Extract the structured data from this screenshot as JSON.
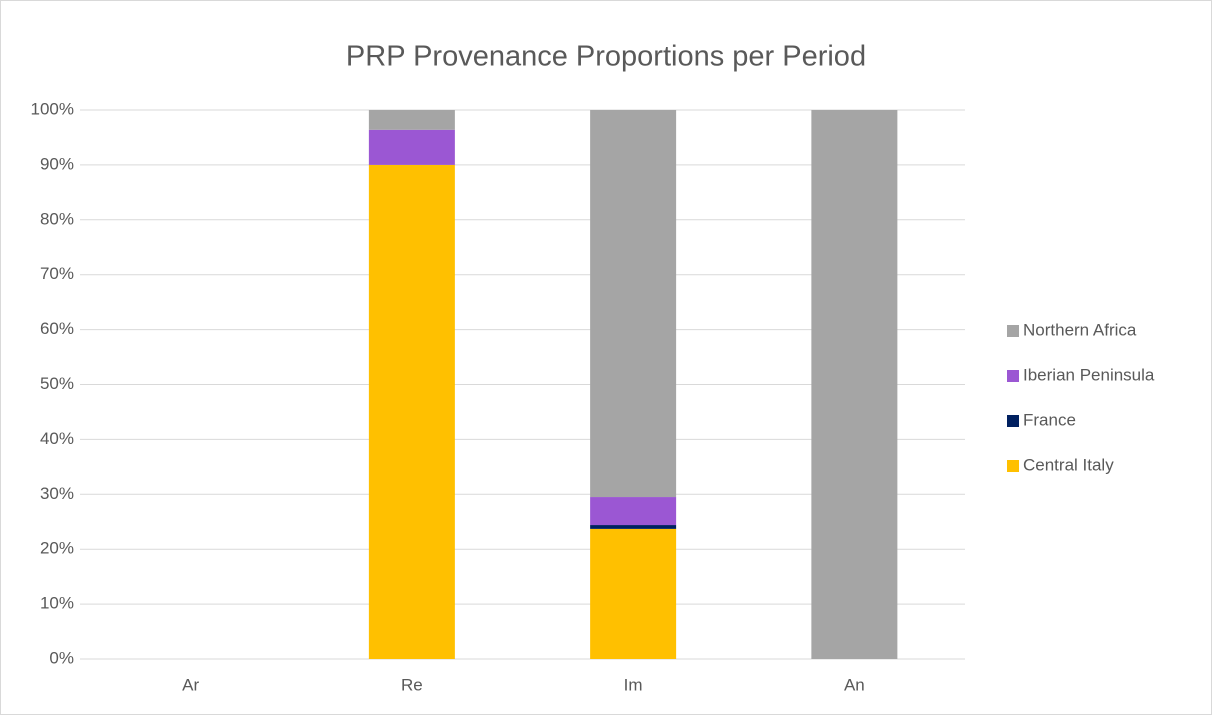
{
  "chart_data": {
    "type": "stacked_bar",
    "title": "PRP Provenance Proportions per Period",
    "categories": [
      "Ar",
      "Re",
      "Im",
      "An"
    ],
    "series": [
      {
        "name": "Central Italy",
        "color": "#ffc000",
        "values": [
          0,
          90,
          23.7,
          0
        ]
      },
      {
        "name": "France",
        "color": "#002060",
        "values": [
          0,
          0,
          0.7,
          0
        ]
      },
      {
        "name": "Iberian Peninsula",
        "color": "#9b57d3",
        "values": [
          0,
          6.4,
          5.1,
          0
        ]
      },
      {
        "name": "Northern Africa",
        "color": "#a5a5a5",
        "values": [
          0,
          3.6,
          70.5,
          100
        ]
      }
    ],
    "ylim": [
      0,
      100
    ],
    "yticks": [
      {
        "value": 0,
        "label": "0%"
      },
      {
        "value": 10,
        "label": "10%"
      },
      {
        "value": 20,
        "label": "20%"
      },
      {
        "value": 30,
        "label": "30%"
      },
      {
        "value": 40,
        "label": "40%"
      },
      {
        "value": 50,
        "label": "50%"
      },
      {
        "value": 60,
        "label": "60%"
      },
      {
        "value": 70,
        "label": "70%"
      },
      {
        "value": 80,
        "label": "80%"
      },
      {
        "value": 90,
        "label": "90%"
      },
      {
        "value": 100,
        "label": "100%"
      }
    ],
    "grid": true,
    "legend": "right"
  }
}
